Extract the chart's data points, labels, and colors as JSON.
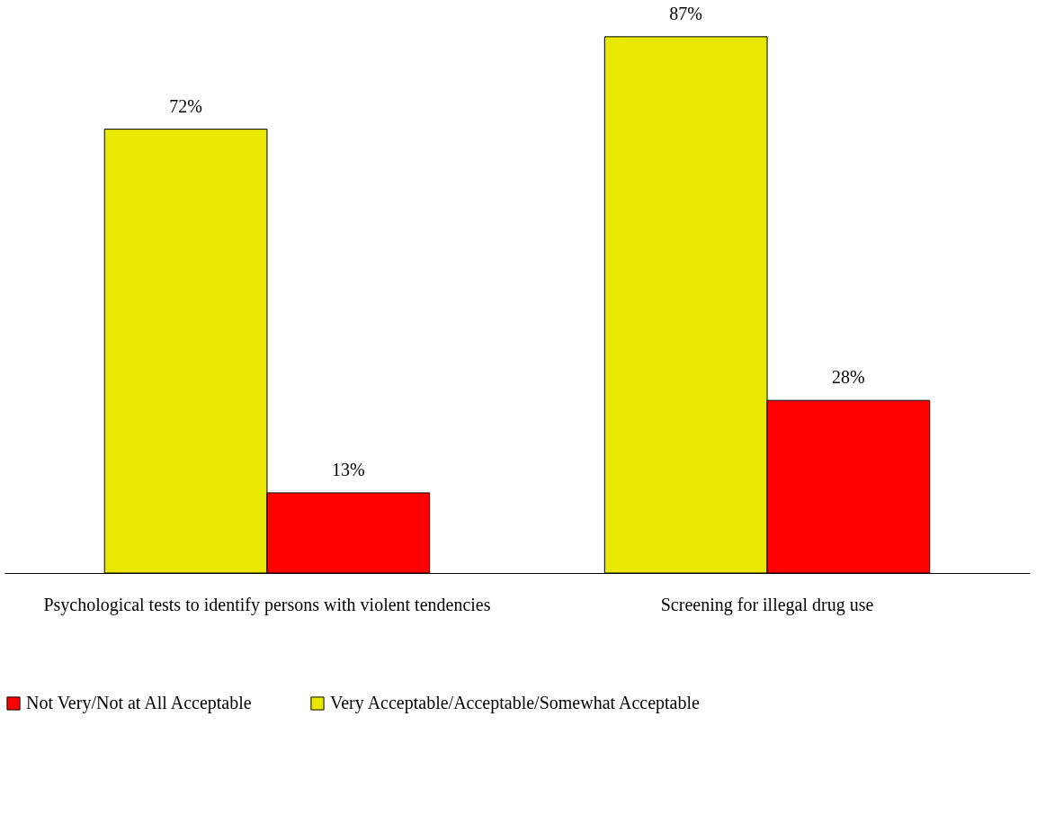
{
  "chart_data": {
    "type": "bar",
    "categories": [
      "Psychological tests to identify persons with violent tendencies",
      "Screening for illegal drug use"
    ],
    "series": [
      {
        "name": "Very Acceptable/Acceptable/Somewhat Acceptable",
        "color": "#e8e800",
        "values": [
          72,
          87
        ],
        "value_labels": [
          "72%",
          "87%"
        ]
      },
      {
        "name": "Not Very/Not at All Acceptable",
        "color": "#ff0000",
        "values": [
          13,
          28
        ],
        "value_labels": [
          "13%",
          "28%"
        ]
      }
    ],
    "legend": "bottom"
  }
}
